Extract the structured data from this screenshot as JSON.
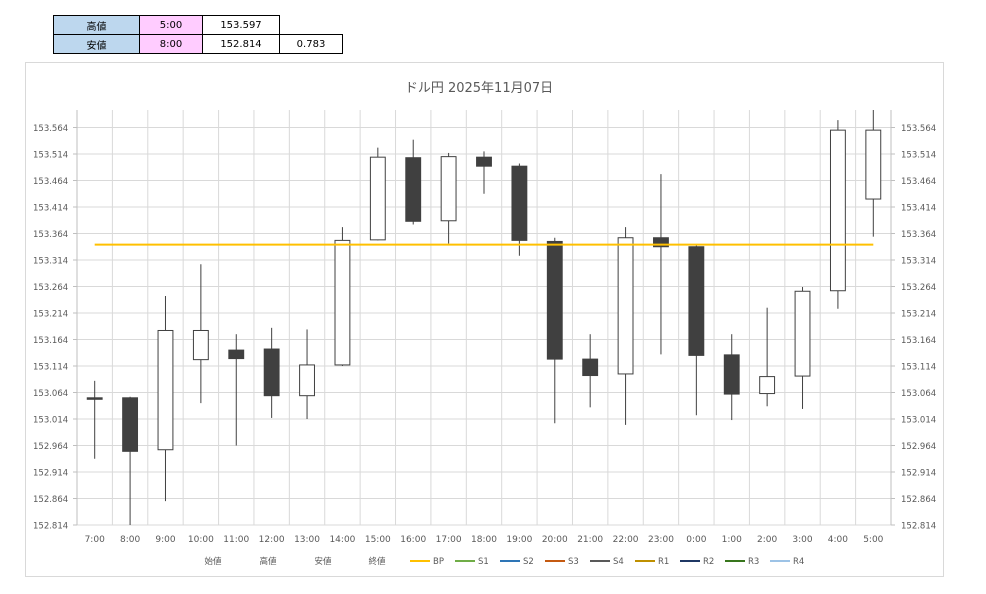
{
  "summary": {
    "high": {
      "label": "高値",
      "time": "5:00",
      "value": "153.597"
    },
    "low": {
      "label": "安値",
      "time": "8:00",
      "value": "152.814",
      "range": "0.783"
    }
  },
  "chart_data": {
    "type": "candlestick",
    "title": "ドル円  2025年11月07日",
    "ylim": [
      152.814,
      153.597
    ],
    "y_ticks": [
      "152.814",
      "152.864",
      "152.914",
      "152.964",
      "153.014",
      "153.064",
      "153.114",
      "153.164",
      "153.214",
      "153.264",
      "153.314",
      "153.364",
      "153.414",
      "153.464",
      "153.514",
      "153.564"
    ],
    "categories": [
      "7:00",
      "8:00",
      "9:00",
      "10:00",
      "11:00",
      "12:00",
      "13:00",
      "14:00",
      "15:00",
      "16:00",
      "17:00",
      "18:00",
      "19:00",
      "20:00",
      "21:00",
      "22:00",
      "23:00",
      "0:00",
      "1:00",
      "2:00",
      "3:00",
      "4:00",
      "5:00"
    ],
    "open": [
      153.054,
      153.054,
      152.956,
      153.126,
      153.144,
      153.146,
      153.058,
      153.116,
      153.352,
      153.507,
      153.388,
      153.508,
      153.491,
      153.349,
      153.127,
      153.099,
      153.356,
      153.339,
      153.135,
      153.062,
      153.095,
      153.256,
      153.429
    ],
    "high": [
      153.086,
      153.056,
      153.246,
      153.306,
      153.174,
      153.186,
      153.183,
      153.376,
      153.526,
      153.541,
      153.516,
      153.519,
      153.496,
      153.356,
      153.174,
      153.376,
      153.476,
      153.342,
      153.174,
      153.224,
      153.263,
      153.578,
      153.597
    ],
    "low": [
      152.939,
      152.814,
      152.859,
      153.044,
      152.964,
      153.016,
      153.014,
      153.114,
      153.351,
      153.381,
      153.345,
      153.439,
      153.322,
      153.006,
      153.036,
      153.003,
      153.136,
      153.021,
      153.012,
      153.038,
      153.033,
      153.222,
      153.358
    ],
    "close": [
      153.052,
      152.953,
      153.181,
      153.181,
      153.128,
      153.058,
      153.116,
      153.351,
      153.508,
      153.387,
      153.509,
      153.491,
      153.351,
      153.127,
      153.096,
      153.356,
      153.339,
      153.134,
      153.061,
      153.094,
      153.255,
      153.559,
      153.559
    ],
    "bp": 153.343,
    "legend": [
      {
        "name": "始値",
        "color": ""
      },
      {
        "name": "高値",
        "color": ""
      },
      {
        "name": "安値",
        "color": ""
      },
      {
        "name": "終値",
        "color": ""
      },
      {
        "name": "BP",
        "color": "#ffc000"
      },
      {
        "name": "S1",
        "color": "#70ad47"
      },
      {
        "name": "S2",
        "color": "#2e75b6"
      },
      {
        "name": "S3",
        "color": "#c55a11"
      },
      {
        "name": "S4",
        "color": "#595959"
      },
      {
        "name": "R1",
        "color": "#bf9000"
      },
      {
        "name": "R2",
        "color": "#1f3864"
      },
      {
        "name": "R3",
        "color": "#38761d"
      },
      {
        "name": "R4",
        "color": "#9dc3e6"
      }
    ],
    "colors": {
      "up": "#ffffff",
      "down": "#404040",
      "bp_line": "#ffc000",
      "grid": "#d9d9d9"
    }
  }
}
